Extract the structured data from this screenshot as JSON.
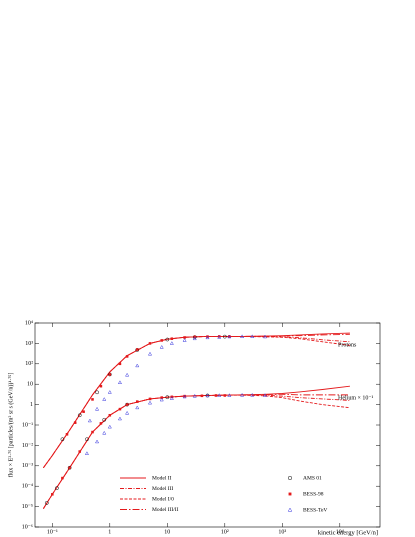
{
  "chart_data": {
    "type": "line",
    "xlabel": "kinetic energy [GeV/n]",
    "ylabel": "flux × E²·⁷⁵ [particles/(m² sr s (GeV/n))¹·⁷⁵]",
    "xscale": "log",
    "yscale": "log",
    "xlim": [
      0.05,
      50000
    ],
    "ylim": [
      1e-06,
      10000
    ],
    "xticks": [
      {
        "value": 0.1,
        "label": "10⁻¹"
      },
      1,
      10,
      {
        "value": 100,
        "label": "10²"
      },
      {
        "value": 1000,
        "label": "10³"
      },
      {
        "value": 10000,
        "label": "10⁴"
      }
    ],
    "yticks": [
      {
        "value": 1e-06,
        "label": "10⁻⁶"
      },
      {
        "value": 1e-05,
        "label": "10⁻⁵"
      },
      {
        "value": 0.0001,
        "label": "10⁻⁴"
      },
      {
        "value": 0.001,
        "label": "10⁻³"
      },
      {
        "value": 0.01,
        "label": "10⁻²"
      },
      {
        "value": 0.1,
        "label": "10⁻¹"
      },
      1,
      10,
      {
        "value": 100,
        "label": "10²"
      },
      {
        "value": 1000,
        "label": "10³"
      },
      {
        "value": 10000,
        "label": "10⁴"
      }
    ],
    "x": [
      0.07,
      0.1,
      0.2,
      0.5,
      1,
      2,
      5,
      10,
      20,
      50,
      100,
      200,
      500,
      1000,
      2000,
      5000,
      15000
    ],
    "groups": [
      {
        "label": "Protons",
        "models": [
          {
            "name": "Model II",
            "color": "#e41a1c",
            "style": "solid",
            "values": [
              0.0008,
              0.0032,
              0.056,
              3,
              40,
              250,
              1000,
              1600,
              2000,
              2200,
              2200,
              2200,
              2300,
              2400,
              2600,
              2900,
              3200
            ]
          },
          {
            "name": "Model III",
            "color": "#e41a1c",
            "style": "dash-dot",
            "values": [
              0.0008,
              0.0032,
              0.056,
              3,
              40,
              250,
              1000,
              1600,
              2000,
              2200,
              2200,
              2200,
              2200,
              2100,
              1900,
              1500,
              1200
            ]
          },
          {
            "name": "Model I/0",
            "color": "#e41a1c",
            "style": "dashed",
            "values": [
              0.0008,
              0.0032,
              0.056,
              3,
              40,
              250,
              1000,
              1600,
              2000,
              2200,
              2200,
              2200,
              2100,
              2000,
              1700,
              1200,
              800
            ]
          },
          {
            "name": "Model III/II",
            "color": "#e41a1c",
            "style": "long-dash-dot",
            "values": [
              0.0008,
              0.0032,
              0.056,
              3,
              40,
              250,
              1000,
              1600,
              2000,
              2200,
              2200,
              2200,
              2250,
              2300,
              2400,
              2600,
              2800
            ]
          }
        ],
        "data": [
          {
            "name": "AMS 01",
            "marker": "circle",
            "color": "#000000",
            "x": [
              0.15,
              0.3,
              0.6,
              1,
              3,
              10,
              30,
              100
            ],
            "values": [
              0.02,
              0.3,
              4,
              30,
              480,
              1550,
              2050,
              2150
            ]
          },
          {
            "name": "BESS-98",
            "marker": "square",
            "color": "#e41a1c",
            "x": [
              0.18,
              0.25,
              0.35,
              0.5,
              0.7,
              1,
              1.5,
              2,
              3,
              5,
              8,
              12,
              20,
              30,
              50,
              80,
              120
            ],
            "values": [
              0.035,
              0.13,
              0.45,
              1.8,
              8,
              30,
              100,
              230,
              500,
              1000,
              1400,
              1700,
              1950,
              2100,
              2150,
              2200,
              2200
            ]
          },
          {
            "name": "BESS-TeV",
            "marker": "triangle",
            "color": "#3333dd",
            "x": [
              0.45,
              0.6,
              0.8,
              1,
              1.5,
              2,
              3,
              5,
              8,
              12,
              20,
              30,
              50,
              80,
              120,
              200,
              300,
              500
            ],
            "values": [
              0.16,
              0.6,
              1.8,
              4,
              12,
              28,
              80,
              300,
              650,
              1000,
              1400,
              1700,
              1900,
              2000,
              2100,
              2150,
              2150,
              2100
            ]
          }
        ]
      },
      {
        "label": "Helium × 10⁻¹",
        "models": [
          {
            "name": "Model II",
            "color": "#e41a1c",
            "style": "solid",
            "values": [
              8e-06,
              4e-05,
              0.0008,
              0.045,
              0.3,
              1,
              1.9,
              2.3,
              2.6,
              2.8,
              2.9,
              3,
              3.2,
              3.5,
              4.2,
              5.5,
              8
            ]
          },
          {
            "name": "Model III",
            "color": "#e41a1c",
            "style": "dash-dot",
            "values": [
              8e-06,
              4e-05,
              0.0008,
              0.045,
              0.3,
              1,
              1.9,
              2.3,
              2.6,
              2.8,
              2.9,
              3,
              2.9,
              2.6,
              2.2,
              1.9,
              1.6
            ]
          },
          {
            "name": "Model I/0",
            "color": "#e41a1c",
            "style": "dashed",
            "values": [
              8e-06,
              4e-05,
              0.0008,
              0.045,
              0.3,
              1,
              1.9,
              2.3,
              2.6,
              2.8,
              2.9,
              2.9,
              2.7,
              2.2,
              1.5,
              1,
              0.7
            ]
          },
          {
            "name": "Model III/II",
            "color": "#e41a1c",
            "style": "long-dash-dot",
            "values": [
              8e-06,
              4e-05,
              0.0008,
              0.045,
              0.3,
              1,
              1.9,
              2.3,
              2.6,
              2.8,
              2.9,
              3,
              3.1,
              3.2,
              3,
              3,
              3
            ]
          }
        ],
        "data": [
          {
            "name": "AMS 01",
            "marker": "circle",
            "color": "#000000",
            "x": [
              0.08,
              0.12,
              0.2,
              0.4,
              0.8,
              2,
              10,
              50
            ],
            "values": [
              1.5e-05,
              8e-05,
              0.0008,
              0.02,
              0.18,
              1,
              2.3,
              2.8
            ]
          },
          {
            "name": "BESS-98",
            "marker": "square",
            "color": "#e41a1c",
            "x": [
              0.1,
              0.15,
              0.2,
              0.3,
              0.5,
              0.7,
              1,
              1.5,
              2,
              3,
              5,
              8,
              12,
              20,
              40,
              70,
              100
            ],
            "values": [
              4e-05,
              0.00025,
              0.0008,
              0.005,
              0.045,
              0.12,
              0.3,
              0.6,
              1,
              1.4,
              1.9,
              2.2,
              2.4,
              2.6,
              2.7,
              2.8,
              2.8
            ]
          },
          {
            "name": "BESS-TeV",
            "marker": "triangle",
            "color": "#3333dd",
            "x": [
              0.4,
              0.6,
              0.8,
              1,
              1.5,
              2,
              3,
              5,
              8,
              12,
              20,
              30,
              50,
              80,
              120,
              200,
              300,
              500
            ],
            "values": [
              0.004,
              0.015,
              0.04,
              0.08,
              0.2,
              0.38,
              0.7,
              1.2,
              1.7,
              2,
              2.4,
              2.6,
              2.7,
              2.8,
              2.8,
              2.9,
              2.9,
              2.8
            ]
          }
        ]
      }
    ]
  }
}
